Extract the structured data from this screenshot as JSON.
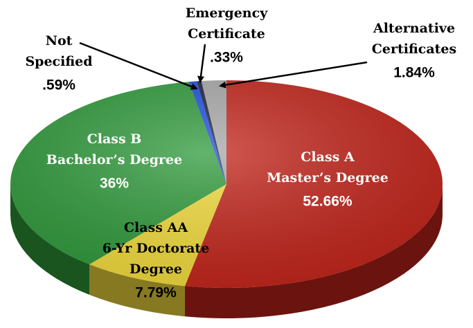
{
  "chart_data": {
    "type": "pie",
    "categories": [
      [
        "Class A",
        "Master’s Degree"
      ],
      [
        "Class AA",
        "6-Yr Doctorate",
        "Degree"
      ],
      [
        "Class B",
        "Bachelor’s Degree"
      ],
      [
        "Not",
        "Specified"
      ],
      [
        "Emergency",
        "Certificate"
      ],
      [
        "Alternative",
        "Certificates"
      ]
    ],
    "values": [
      52.66,
      7.79,
      36,
      0.59,
      0.33,
      1.84
    ],
    "value_labels": [
      "52.66%",
      "7.79%",
      "36%",
      ".59%",
      ".33%",
      "1.84%"
    ],
    "colors": [
      "#c3251b",
      "#f3dc3c",
      "#2f9a3b",
      "#1d4de0",
      "#1b2140",
      "#a9a9a9"
    ]
  }
}
